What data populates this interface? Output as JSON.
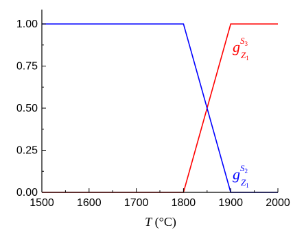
{
  "chart_data": {
    "type": "line",
    "title": "",
    "xlabel": "T (°C)",
    "xlabel_var": "T",
    "xlabel_unit": "(°C)",
    "ylabel": "",
    "xlim": [
      1500,
      2000
    ],
    "ylim": [
      0,
      1.1
    ],
    "xticks": [
      "1500",
      "1600",
      "1700",
      "1800",
      "1900",
      "2000"
    ],
    "yticks": [
      "0.00",
      "0.25",
      "0.50",
      "0.75",
      "1.00"
    ],
    "grid": false,
    "series": [
      {
        "name": "g_{Z1}^{S3}",
        "label_base": "g",
        "label_sup": "S",
        "label_sup_sub": "3",
        "label_sub": "Z",
        "label_sub_sub": "1",
        "color": "#ff0000",
        "x": [
          1500,
          1800,
          1900,
          2000
        ],
        "y": [
          0,
          0,
          1,
          1
        ]
      },
      {
        "name": "g_{Z1}^{S2}",
        "label_base": "g",
        "label_sup": "S",
        "label_sup_sub": "2",
        "label_sub": "Z",
        "label_sub_sub": "1",
        "color": "#0000ff",
        "x": [
          1500,
          1800,
          1900,
          2000
        ],
        "y": [
          1,
          1,
          0,
          0
        ]
      }
    ]
  }
}
